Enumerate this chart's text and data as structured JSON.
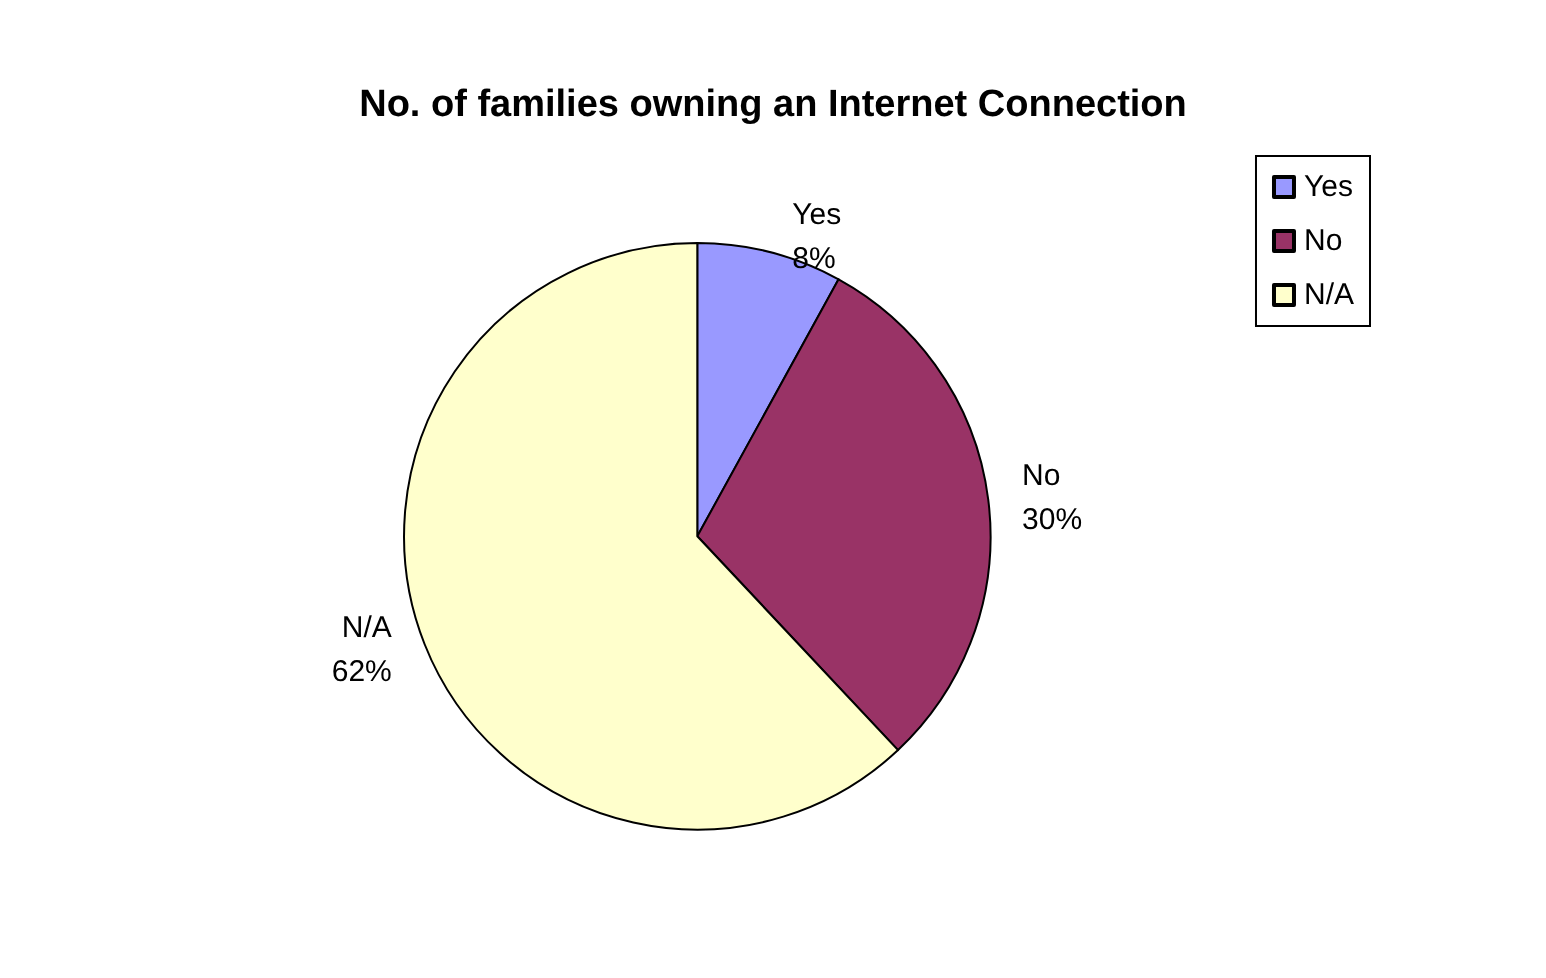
{
  "chart_data": {
    "type": "pie",
    "title": "No. of families owning an Internet Connection",
    "categories": [
      "Yes",
      "No",
      "N/A"
    ],
    "values": [
      8,
      30,
      62
    ],
    "colors": [
      "#9999ff",
      "#993366",
      "#ffffcc"
    ],
    "value_labels": [
      "8%",
      "30%",
      "62%"
    ],
    "legend": "top right"
  }
}
